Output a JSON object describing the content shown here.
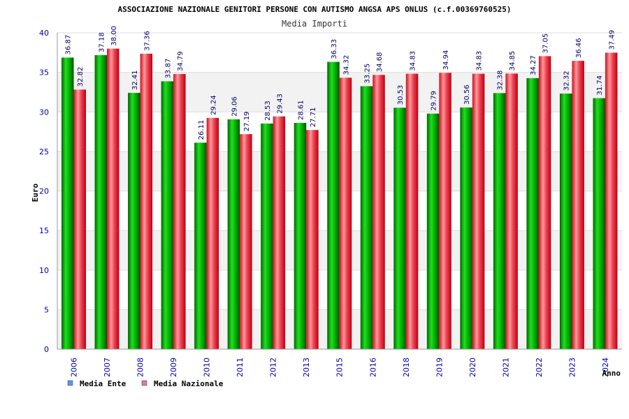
{
  "chart_data": {
    "type": "bar",
    "title": "ASSOCIAZIONE NAZIONALE GENITORI PERSONE CON AUTISMO ANGSA APS ONLUS (c.f.00369760525)",
    "subtitle": "Media Importi",
    "xlabel": "Anno",
    "ylabel": "Euro",
    "ylim": [
      0,
      40
    ],
    "yticks": [
      0,
      5,
      10,
      15,
      20,
      25,
      30,
      35,
      40
    ],
    "grid": true,
    "legend_position": "bottom-left",
    "categories": [
      "2006",
      "2007",
      "2008",
      "2009",
      "2010",
      "2011",
      "2012",
      "2013",
      "2015",
      "2016",
      "2018",
      "2019",
      "2020",
      "2021",
      "2022",
      "2023",
      "2024"
    ],
    "series": [
      {
        "name": "Media Ente",
        "color": "#00aa00",
        "legend_color": "#5599ee",
        "values": [
          36.87,
          37.18,
          32.41,
          33.87,
          26.11,
          29.06,
          28.53,
          28.61,
          36.33,
          33.25,
          30.53,
          29.79,
          30.56,
          32.38,
          34.27,
          32.32,
          31.74
        ],
        "labels": [
          "36.87",
          "37.18",
          "32.41",
          "33.87",
          "26.11",
          "29.06",
          "28.53",
          "28.61",
          "36.33",
          "33.25",
          "30.53",
          "29.79",
          "30.56",
          "32.38",
          "34.27",
          "32.32",
          "31.74"
        ]
      },
      {
        "name": "Media Nazionale",
        "color": "#dd2233",
        "legend_color": "#dd77aa",
        "values": [
          32.82,
          38.0,
          37.36,
          34.79,
          29.24,
          27.19,
          29.43,
          27.71,
          34.32,
          34.68,
          34.83,
          34.94,
          34.83,
          34.85,
          37.05,
          36.46,
          37.49
        ],
        "labels": [
          "32.82",
          "38.00",
          "37.36",
          "34.79",
          "29.24",
          "27.19",
          "29.43",
          "27.71",
          "34.32",
          "34.68",
          "34.83",
          "34.94",
          "34.83",
          "34.85",
          "37.05",
          "36.46",
          "37.49"
        ]
      }
    ]
  }
}
